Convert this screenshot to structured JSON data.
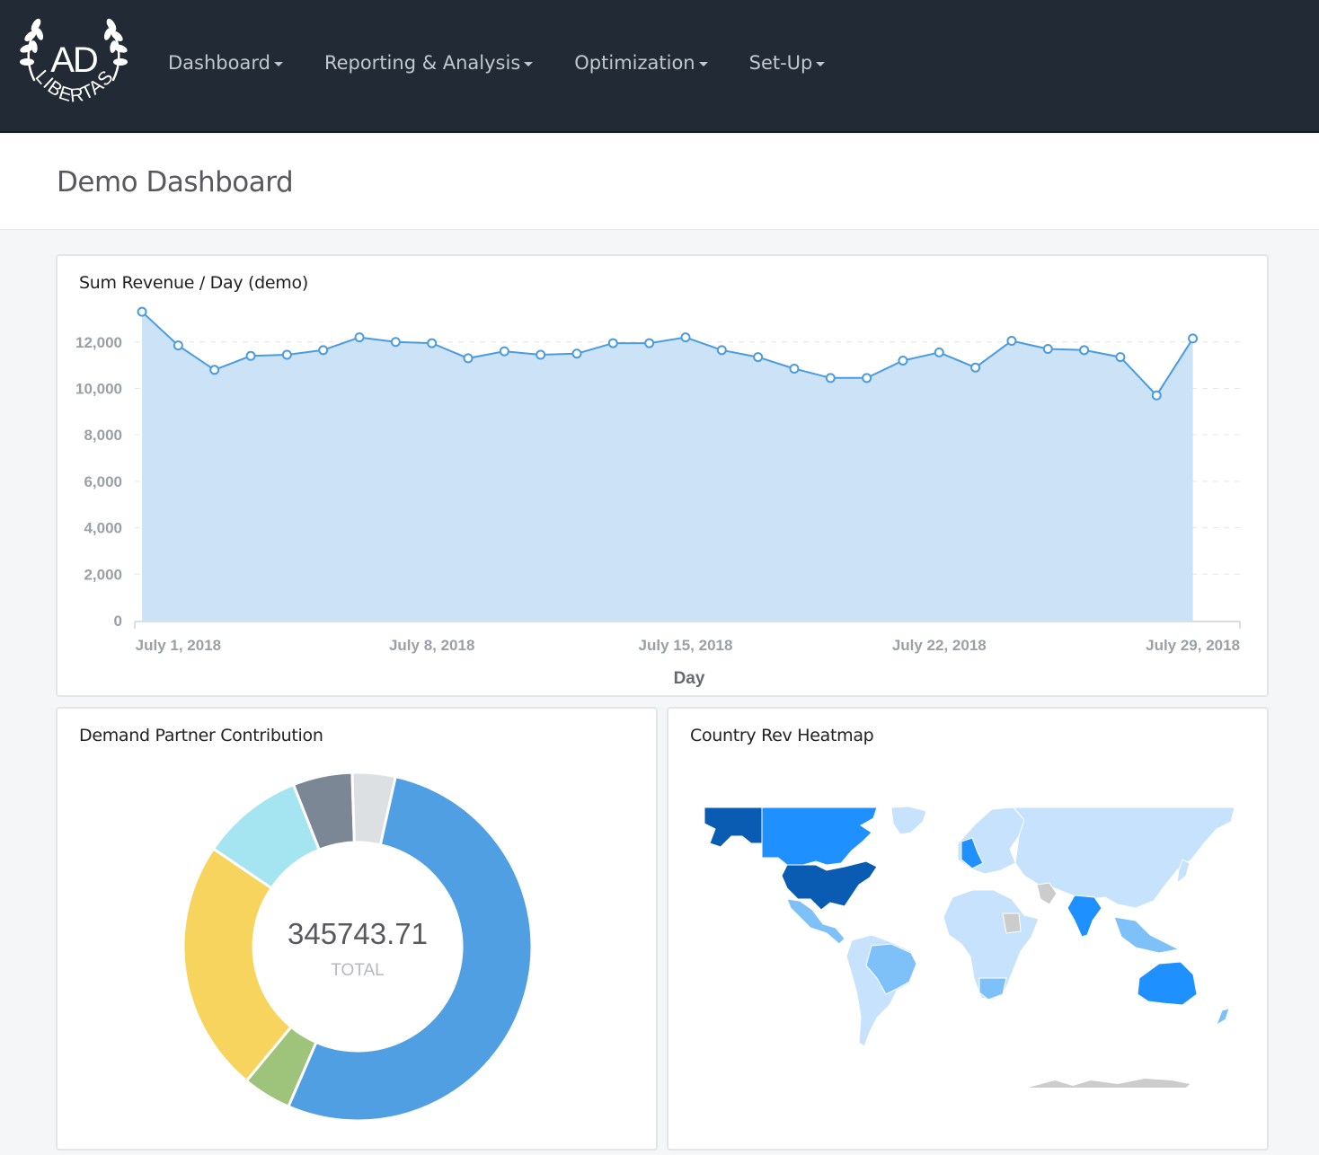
{
  "nav": {
    "logo": {
      "text_top": "AD",
      "text_bottom": "LIBERTAS"
    },
    "items": [
      {
        "label": "Dashboard"
      },
      {
        "label": "Reporting & Analysis"
      },
      {
        "label": "Optimization"
      },
      {
        "label": "Set-Up"
      }
    ]
  },
  "page": {
    "title": "Demo Dashboard"
  },
  "revenue_card": {
    "title": "Sum Revenue / Day (demo)"
  },
  "partner_card": {
    "title": "Demand Partner Contribution",
    "total_value": "345743.71",
    "total_label": "TOTAL"
  },
  "heatmap_card": {
    "title": "Country Rev Heatmap"
  },
  "chart_data": [
    {
      "type": "area",
      "title": "Sum Revenue / Day (demo)",
      "xlabel": "Day",
      "ylabel": "",
      "ylim": [
        0,
        13500
      ],
      "yticks": [
        0,
        2000,
        4000,
        6000,
        8000,
        10000,
        12000
      ],
      "ytick_labels": [
        "0",
        "2,000",
        "4,000",
        "6,000",
        "8,000",
        "10,000",
        "12,000"
      ],
      "xtick_labels": [
        {
          "label": "July 1, 2018",
          "day": 1
        },
        {
          "label": "July 8, 2018",
          "day": 8
        },
        {
          "label": "July 15, 2018",
          "day": 15
        },
        {
          "label": "July 22, 2018",
          "day": 22
        },
        {
          "label": "July 29, 2018",
          "day": 29
        }
      ],
      "x_day_range": [
        -0.2,
        30.3
      ],
      "x": [
        "2018-06-30",
        "2018-07-01",
        "2018-07-02",
        "2018-07-03",
        "2018-07-04",
        "2018-07-05",
        "2018-07-06",
        "2018-07-07",
        "2018-07-08",
        "2018-07-09",
        "2018-07-10",
        "2018-07-11",
        "2018-07-12",
        "2018-07-13",
        "2018-07-14",
        "2018-07-15",
        "2018-07-16",
        "2018-07-17",
        "2018-07-18",
        "2018-07-19",
        "2018-07-20",
        "2018-07-21",
        "2018-07-22",
        "2018-07-23",
        "2018-07-24",
        "2018-07-25",
        "2018-07-26",
        "2018-07-27",
        "2018-07-28",
        "2018-07-29"
      ],
      "x_day": [
        0,
        1,
        2,
        3,
        4,
        5,
        6,
        7,
        8,
        9,
        10,
        11,
        12,
        13,
        14,
        15,
        16,
        17,
        18,
        19,
        20,
        21,
        22,
        23,
        24,
        25,
        26,
        27,
        28,
        29
      ],
      "values": [
        13300,
        11850,
        10800,
        11400,
        11450,
        11650,
        12200,
        12000,
        11950,
        11300,
        11600,
        11450,
        11500,
        11950,
        11950,
        12200,
        11650,
        11350,
        10850,
        10450,
        10450,
        11200,
        11550,
        10900,
        12050,
        11700,
        11650,
        11350,
        9700,
        12150
      ],
      "color": "#4a9be0",
      "fill": "#cce2f6",
      "grid": true,
      "legend": "none"
    },
    {
      "type": "pie",
      "title": "Demand Partner Contribution",
      "total": 345743.71,
      "total_label": "TOTAL",
      "slices": [
        {
          "fraction": 0.565,
          "color": "#509fe3"
        },
        {
          "fraction": 0.045,
          "color": "#9dc47a"
        },
        {
          "fraction": 0.235,
          "color": "#f6d45d"
        },
        {
          "fraction": 0.095,
          "color": "#a5e5f2"
        },
        {
          "fraction": 0.055,
          "color": "#7c8796"
        },
        {
          "fraction": 0.04,
          "color": "#dce0e3"
        }
      ]
    }
  ],
  "heatmap": {
    "title": "Country Rev Heatmap",
    "colors": {
      "low": "#c6e2fc",
      "mid": "#7ec0f8",
      "high": "#1e90ff",
      "top": "#0a5cb2",
      "no_data": "#cccccc"
    }
  }
}
